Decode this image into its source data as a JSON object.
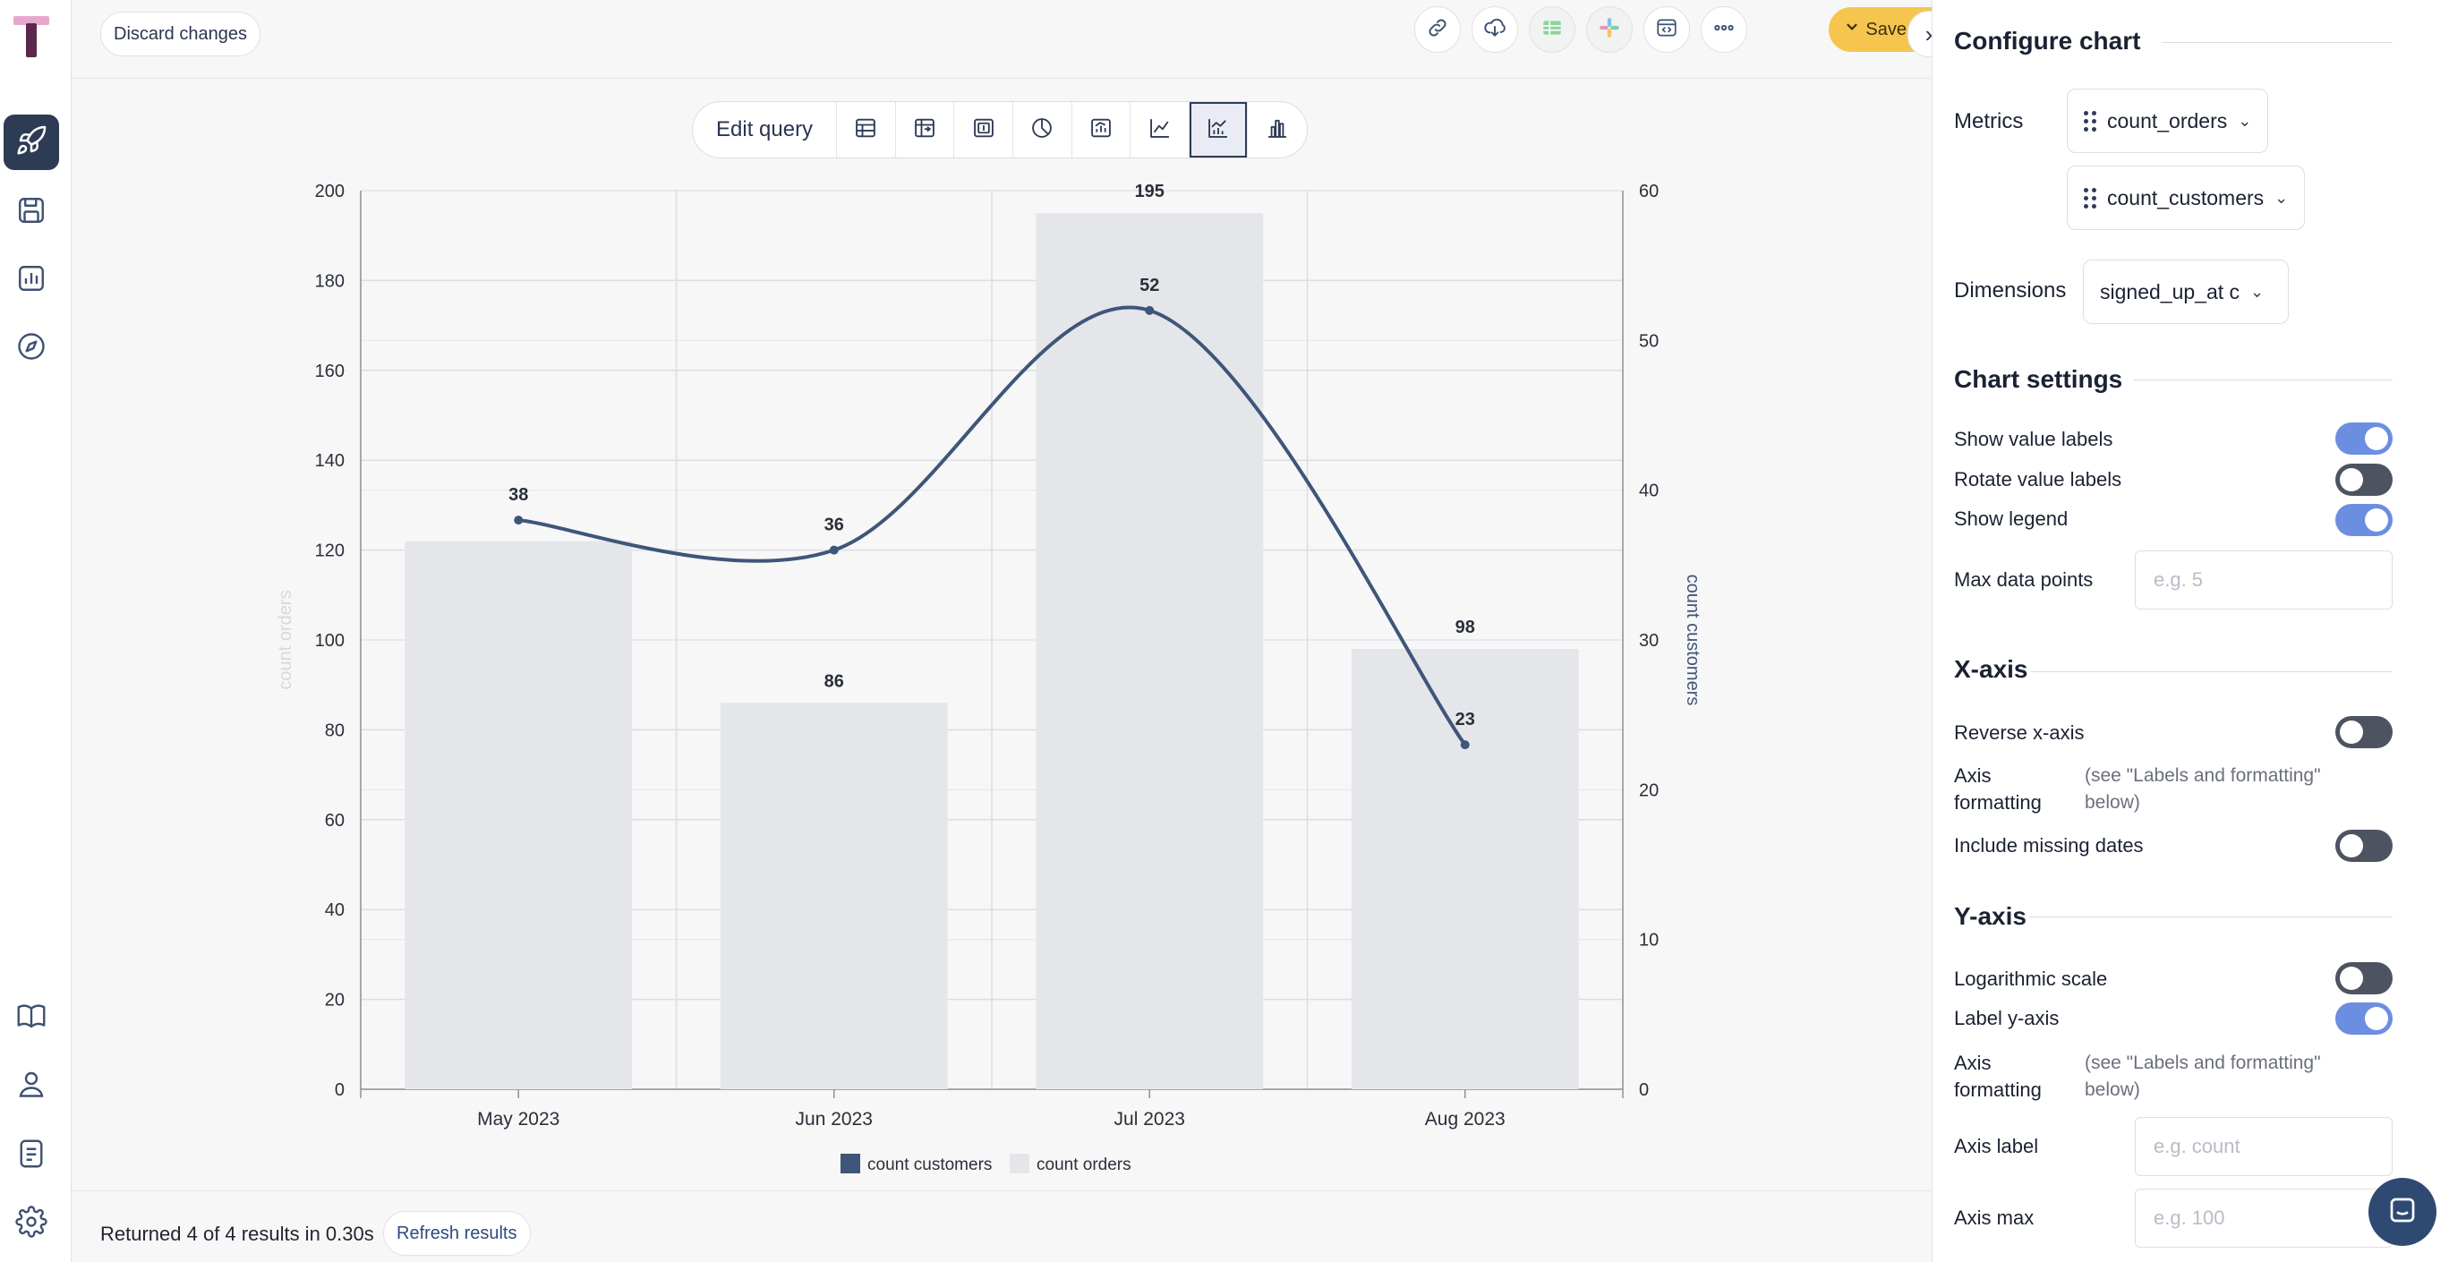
{
  "topbar": {
    "discard_label": "Discard changes",
    "save_label": "Save query",
    "icons": [
      "link-icon",
      "cloud-download-icon",
      "google-sheets-icon",
      "slack-icon",
      "embed-code-icon",
      "more-icon"
    ]
  },
  "nav": {
    "items": [
      "rocket-icon",
      "save-icon",
      "chart-icon",
      "compass-icon",
      "book-icon",
      "user-icon",
      "document-icon",
      "settings-icon"
    ],
    "active": "rocket-icon"
  },
  "chart_toolbar": {
    "edit_label": "Edit query",
    "types": [
      "table-icon",
      "pivot-table-icon",
      "number-card-icon",
      "pie-chart-icon",
      "bar-line-icon",
      "line-chart-icon",
      "combo-chart-icon",
      "bar-chart-icon"
    ],
    "active": "combo-chart-icon"
  },
  "chart_data": {
    "type": "bar",
    "categories": [
      "May 2023",
      "Jun 2023",
      "Jul 2023",
      "Aug 2023"
    ],
    "series": [
      {
        "name": "count orders",
        "type": "bar",
        "axis": "left",
        "values": [
          122,
          86,
          195,
          98
        ],
        "labels": [
          "",
          "86",
          "195",
          "98"
        ],
        "color": "#e4e6ea"
      },
      {
        "name": "count customers",
        "type": "line",
        "axis": "right",
        "values": [
          38,
          36,
          52,
          23
        ],
        "labels": [
          "38",
          "36",
          "52",
          "23"
        ],
        "color": "#3e5679"
      }
    ],
    "y_left": {
      "label": "count orders",
      "ylim": [
        0,
        200
      ],
      "ticks": [
        "0",
        "20",
        "40",
        "60",
        "80",
        "100",
        "120",
        "140",
        "160",
        "180",
        "200"
      ]
    },
    "y_right": {
      "label": "count customers",
      "ylim": [
        0,
        60
      ],
      "ticks": [
        "0",
        "10",
        "20",
        "30",
        "40",
        "50",
        "60"
      ]
    },
    "grid": true,
    "legend_position": "bottom"
  },
  "status": {
    "results_text": "Returned 4 of 4 results in 0.30s",
    "refresh_label": "Refresh results"
  },
  "panel": {
    "configure_title": "Configure chart",
    "metrics_label": "Metrics",
    "metrics": [
      "count_orders",
      "count_customers"
    ],
    "dimensions_label": "Dimensions",
    "dimension": "signed_up_at c",
    "chart_settings_title": "Chart settings",
    "show_value_labels": {
      "label": "Show value labels",
      "on": true
    },
    "rotate_value_labels": {
      "label": "Rotate value labels",
      "on": false
    },
    "show_legend": {
      "label": "Show legend",
      "on": true
    },
    "max_data_points": {
      "label": "Max data points",
      "placeholder": "e.g. 5"
    },
    "xaxis_title": "X-axis",
    "reverse_xaxis": {
      "label": "Reverse x-axis",
      "on": false
    },
    "x_axis_formatting_label": "Axis formatting",
    "x_axis_formatting_note": "(see \"Labels and formatting\" below)",
    "include_missing_dates": {
      "label": "Include missing dates",
      "on": false
    },
    "yaxis_title": "Y-axis",
    "log_scale": {
      "label": "Logarithmic scale",
      "on": false
    },
    "label_yaxis": {
      "label": "Label y-axis",
      "on": true
    },
    "y_axis_formatting_label": "Axis formatting",
    "y_axis_formatting_note": "(see \"Labels and formatting\" below)",
    "axis_label": {
      "label": "Axis label",
      "placeholder": "e.g. count"
    },
    "axis_max": {
      "label": "Axis max",
      "placeholder": "e.g. 100"
    }
  }
}
